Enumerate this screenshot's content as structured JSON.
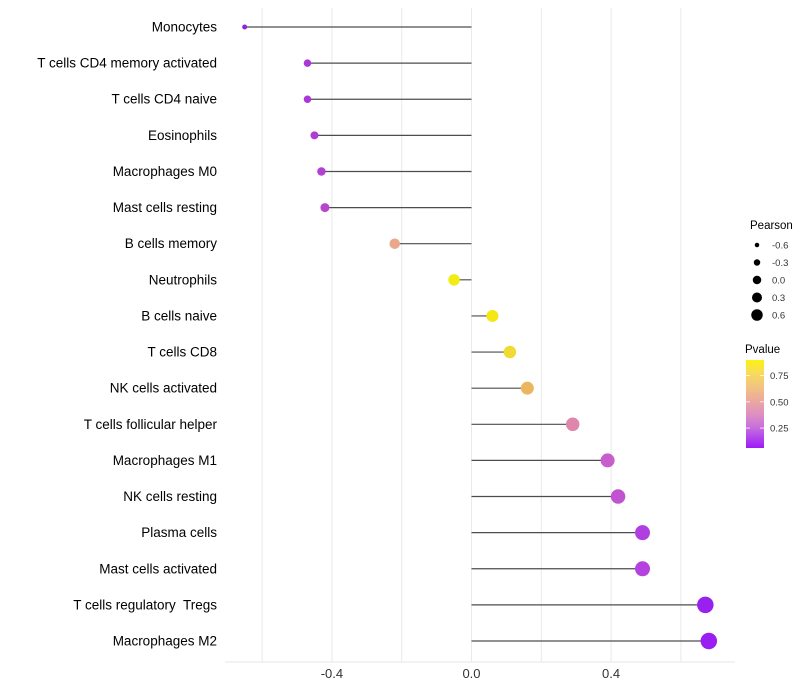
{
  "figure": {
    "background": "#FFFFFF",
    "text_color": "#000000",
    "tick_label_color": "#333333",
    "gridline_color": "#EAEAEA",
    "axis_line_color": "#E7E7E7",
    "stem_color": "#4D4D4D"
  },
  "chart_data": {
    "type": "scatter",
    "style": "horizontal-lollipop",
    "title": "",
    "xlabel": "",
    "ylabel": "",
    "xlim": [
      -0.72,
      0.78
    ],
    "baseline": 0.0,
    "grid": "vertical-gridlines-only",
    "x_gridline_values": [
      -0.6,
      -0.4,
      -0.2,
      0.0,
      0.2,
      0.4,
      0.6
    ],
    "x_tick_values": [
      -0.4,
      0.0,
      0.4
    ],
    "x_tick_labels": [
      "-0.4",
      "0.0",
      "0.4"
    ],
    "categories": [
      "Monocytes",
      "T cells CD4 memory activated",
      "T cells CD4 naive",
      "Eosinophils",
      "Macrophages M0",
      "Mast cells resting",
      "B cells memory",
      "Neutrophils",
      "B cells naive",
      "T cells CD8",
      "NK cells activated",
      "T cells follicular helper",
      "Macrophages M1",
      "NK cells resting",
      "Plasma cells",
      "Mast cells activated",
      "T cells regulatory  Tregs",
      "Macrophages M2"
    ],
    "series": [
      {
        "name": "Pearson",
        "values": [
          -0.65,
          -0.47,
          -0.47,
          -0.45,
          -0.43,
          -0.42,
          -0.22,
          -0.05,
          0.06,
          0.11,
          0.16,
          0.29,
          0.39,
          0.42,
          0.49,
          0.49,
          0.67,
          0.68
        ]
      }
    ],
    "points": [
      {
        "label": "Monocytes",
        "pearson": -0.65,
        "dot_color": "#8E28DA",
        "dot_diameter": 5
      },
      {
        "label": "T cells CD4 memory activated",
        "pearson": -0.47,
        "dot_color": "#AB37D6",
        "dot_diameter": 7.5
      },
      {
        "label": "T cells CD4 naive",
        "pearson": -0.47,
        "dot_color": "#AB37D6",
        "dot_diameter": 7.5
      },
      {
        "label": "Eosinophils",
        "pearson": -0.45,
        "dot_color": "#AE3BD3",
        "dot_diameter": 8
      },
      {
        "label": "Macrophages M0",
        "pearson": -0.43,
        "dot_color": "#B241D0",
        "dot_diameter": 8.5
      },
      {
        "label": "Mast cells resting",
        "pearson": -0.42,
        "dot_color": "#B746CD",
        "dot_diameter": 9
      },
      {
        "label": "B cells memory",
        "pearson": -0.22,
        "dot_color": "#E9A78C",
        "dot_diameter": 10.5
      },
      {
        "label": "Neutrophils",
        "pearson": -0.05,
        "dot_color": "#F1EC11",
        "dot_diameter": 11.5
      },
      {
        "label": "B cells naive",
        "pearson": 0.06,
        "dot_color": "#F4E713",
        "dot_diameter": 12
      },
      {
        "label": "T cells CD8",
        "pearson": 0.11,
        "dot_color": "#F1DA33",
        "dot_diameter": 12.5
      },
      {
        "label": "NK cells activated",
        "pearson": 0.16,
        "dot_color": "#ECB660",
        "dot_diameter": 13
      },
      {
        "label": "T cells follicular helper",
        "pearson": 0.29,
        "dot_color": "#DF86AD",
        "dot_diameter": 13.5
      },
      {
        "label": "Macrophages M1",
        "pearson": 0.39,
        "dot_color": "#C65FCB",
        "dot_diameter": 14
      },
      {
        "label": "NK cells resting",
        "pearson": 0.42,
        "dot_color": "#C153D1",
        "dot_diameter": 14.5
      },
      {
        "label": "Plasma cells",
        "pearson": 0.49,
        "dot_color": "#B03EE1",
        "dot_diameter": 15
      },
      {
        "label": "Mast cells activated",
        "pearson": 0.49,
        "dot_color": "#B342DF",
        "dot_diameter": 15
      },
      {
        "label": "T cells regulatory  Tregs",
        "pearson": 0.67,
        "dot_color": "#9921F0",
        "dot_diameter": 16.5
      },
      {
        "label": "Macrophages M2",
        "pearson": 0.68,
        "dot_color": "#9A1DF2",
        "dot_diameter": 16.5
      }
    ],
    "legend_position": "right",
    "size_legend": {
      "title": "Pearson",
      "labels": [
        "-0.6",
        "-0.3",
        "0.0",
        "0.3",
        "0.6"
      ],
      "dot_diameters": [
        4.5,
        6.5,
        8.5,
        10,
        11.5
      ],
      "dot_color": "#000000"
    },
    "color_legend": {
      "title": "Pvalue",
      "tick_labels": [
        "0.75",
        "0.50",
        "0.25"
      ],
      "gradient_top_to_bottom": [
        {
          "offset": 0,
          "color": "#FBF30F"
        },
        {
          "offset": 14,
          "color": "#F8DC5A"
        },
        {
          "offset": 30,
          "color": "#F3C47F"
        },
        {
          "offset": 46,
          "color": "#EBA99E"
        },
        {
          "offset": 62,
          "color": "#DD8FC2"
        },
        {
          "offset": 77,
          "color": "#C76EDE"
        },
        {
          "offset": 90,
          "color": "#AE3EF0"
        },
        {
          "offset": 100,
          "color": "#9E1BF4"
        }
      ]
    }
  }
}
